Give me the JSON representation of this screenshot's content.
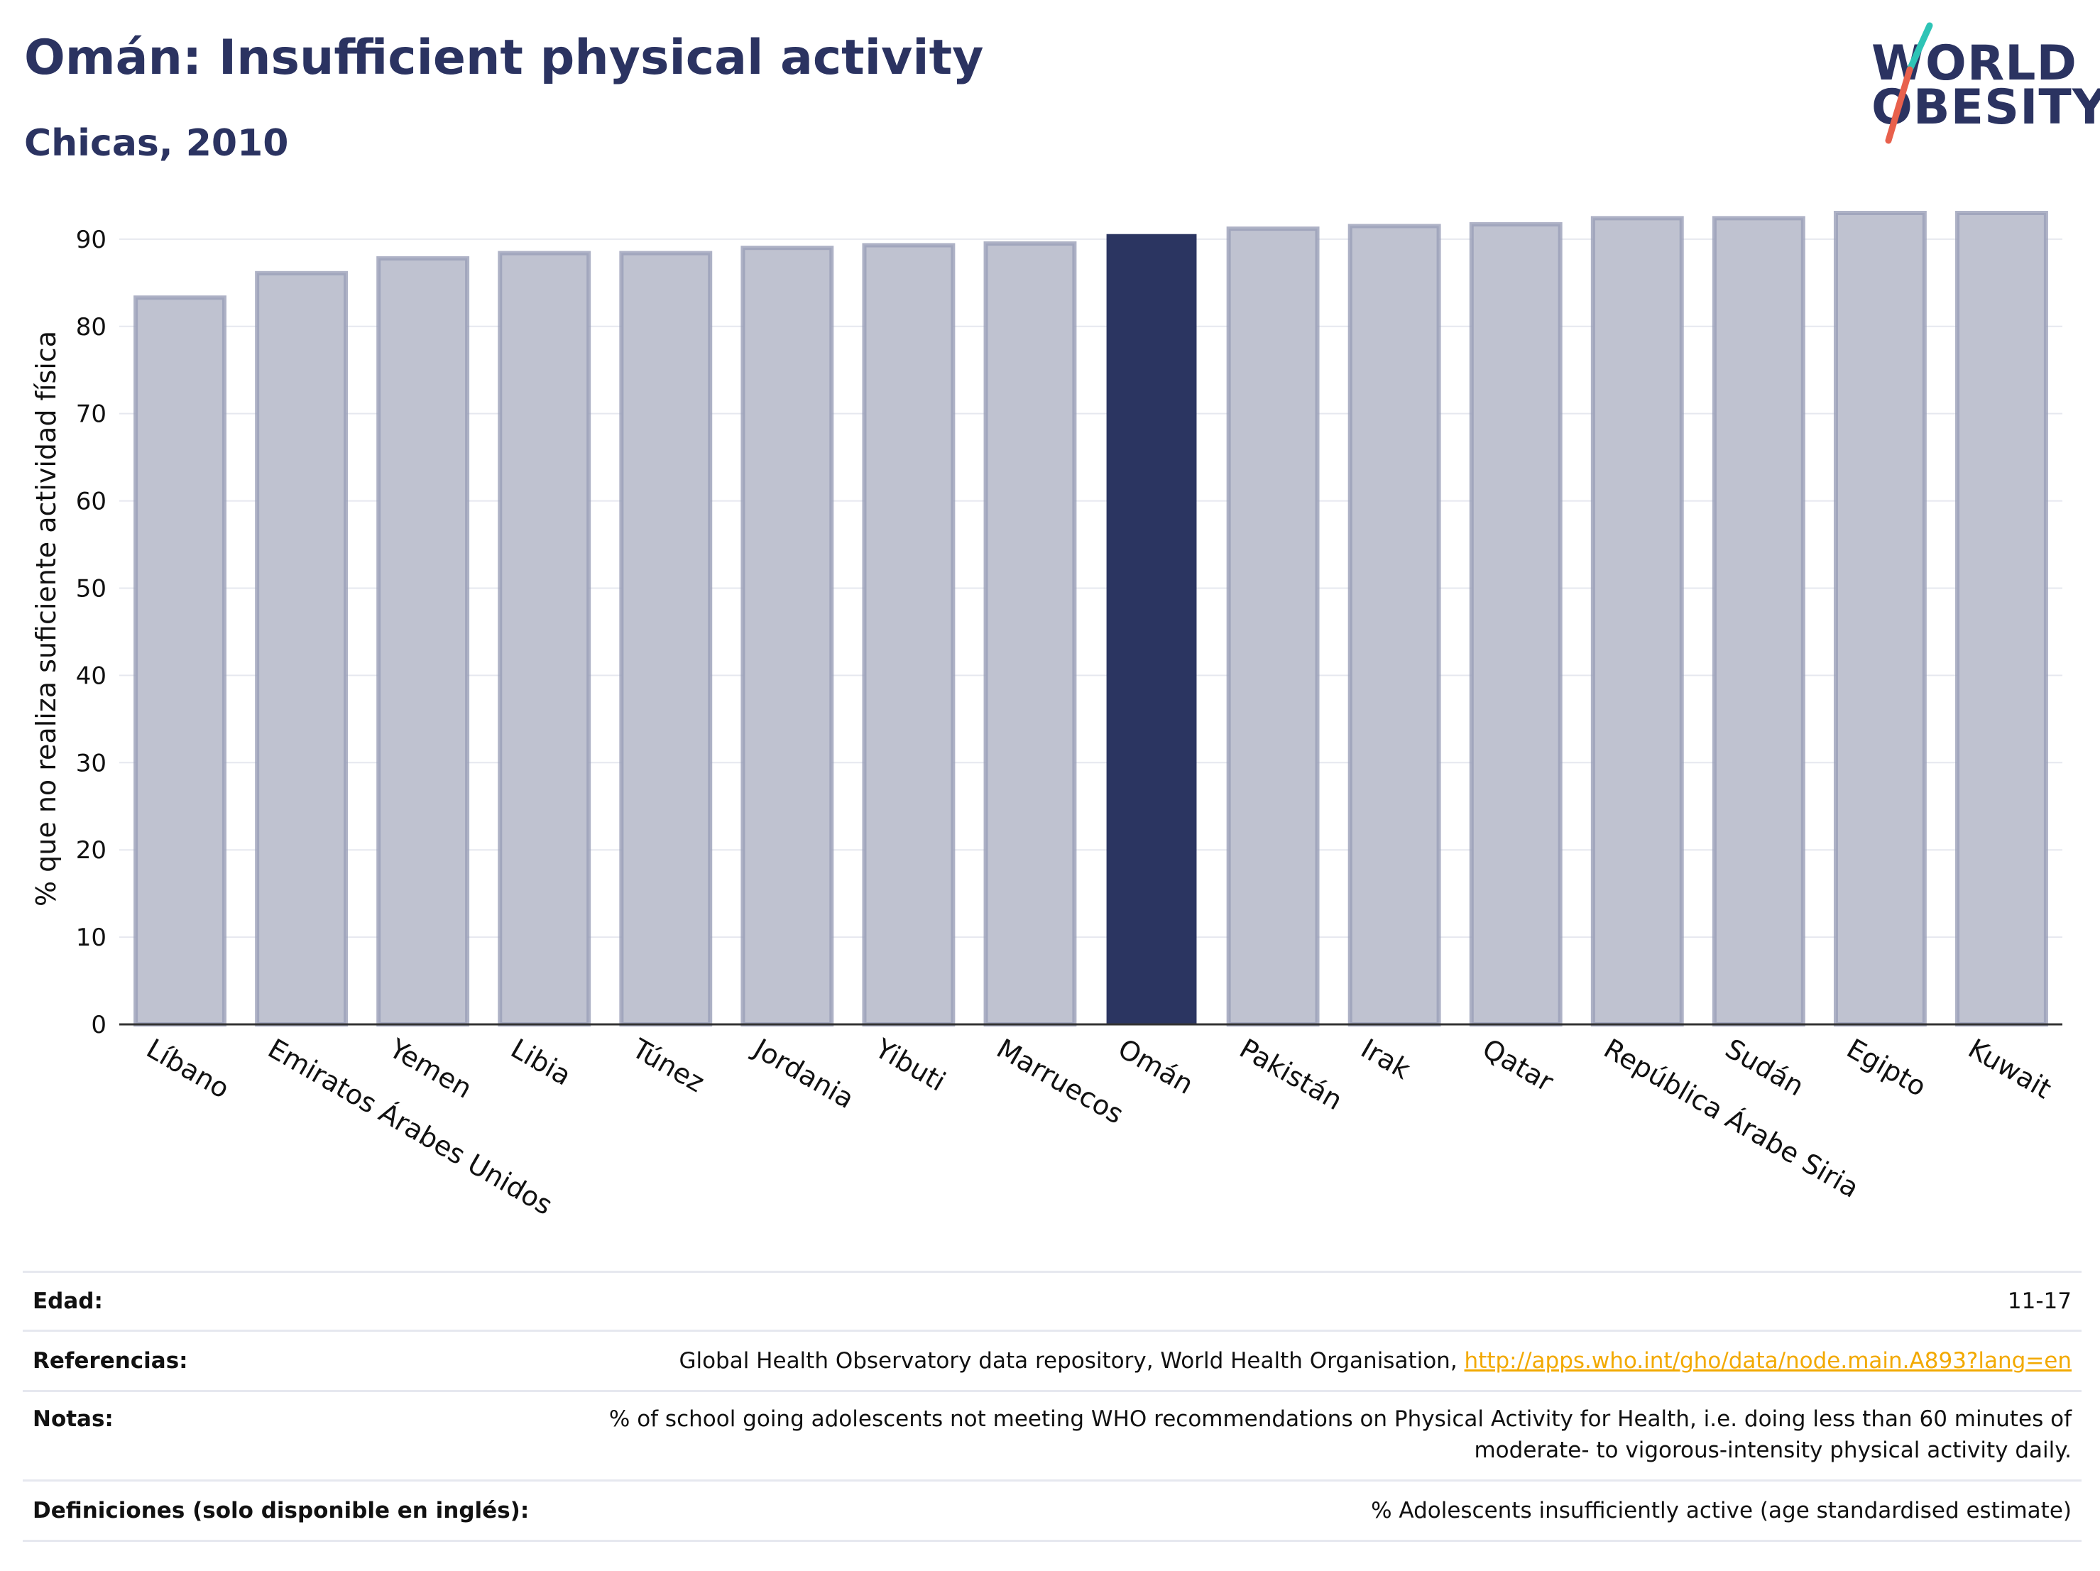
{
  "header": {
    "title": "Omán: Insufficient physical activity",
    "subtitle": "Chicas, 2010"
  },
  "logo": {
    "line1": "WORLD",
    "line2": "OBESITY"
  },
  "colors": {
    "highlight": "#2b3561",
    "bar": "#bfc2d0",
    "bar_edge": "#9a9fb8",
    "accent_teal": "#2ec4b6",
    "accent_red": "#e8604c"
  },
  "chart_data": {
    "type": "bar",
    "title": "",
    "xlabel": "",
    "ylabel": "% que no realiza suficiente actividad física",
    "ylim": [
      0,
      93
    ],
    "yticks": [
      0,
      10,
      20,
      30,
      40,
      50,
      60,
      70,
      80,
      90
    ],
    "grid": true,
    "highlight": "Omán",
    "categories": [
      "Líbano",
      "Emiratos Árabes Unidos",
      "Yemen",
      "Libia",
      "Túnez",
      "Jordania",
      "Yibuti",
      "Marruecos",
      "Omán",
      "Pakistán",
      "Irak",
      "Qatar",
      "República Árabe Siria",
      "Sudán",
      "Egipto",
      "Kuwait"
    ],
    "values": [
      83.3,
      86.1,
      87.8,
      88.4,
      88.4,
      89.0,
      89.3,
      89.5,
      90.5,
      91.2,
      91.5,
      91.7,
      92.4,
      92.4,
      93.0,
      93.0
    ]
  },
  "metadata": {
    "rows": [
      {
        "label": "Edad:",
        "value": "11-17"
      },
      {
        "label": "Referencias:",
        "value": "Global Health Observatory data repository, World Health Organisation, ",
        "link": "http://apps.who.int/gho/data/node.main.A893?lang=en"
      },
      {
        "label": "Notas:",
        "value": "% of school going adolescents not meeting WHO recommendations on Physical Activity for Health, i.e. doing less than 60 minutes of moderate- to vigorous-intensity physical activity daily."
      },
      {
        "label": "Definiciones (solo disponible en inglés):",
        "value": "% Adolescents insufficiently active (age standardised estimate)"
      }
    ]
  }
}
